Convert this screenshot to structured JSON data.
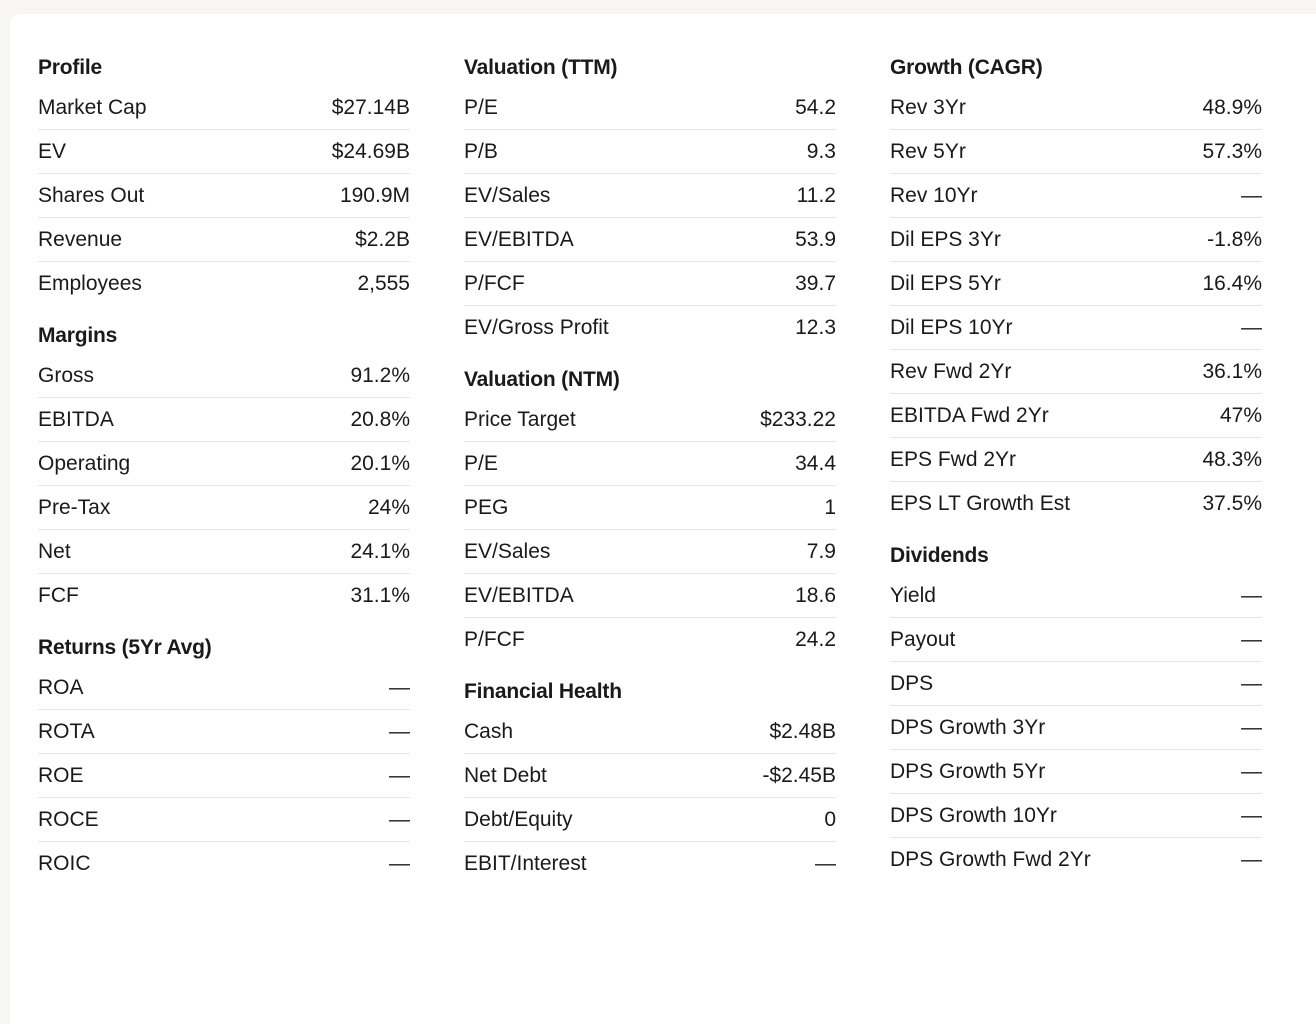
{
  "columns": [
    {
      "sections": [
        {
          "title": "Profile",
          "rows": [
            {
              "label": "Market Cap",
              "value": "$27.14B"
            },
            {
              "label": "EV",
              "value": "$24.69B"
            },
            {
              "label": "Shares Out",
              "value": "190.9M"
            },
            {
              "label": "Revenue",
              "value": "$2.2B"
            },
            {
              "label": "Employees",
              "value": "2,555"
            }
          ]
        },
        {
          "title": "Margins",
          "rows": [
            {
              "label": "Gross",
              "value": "91.2%"
            },
            {
              "label": "EBITDA",
              "value": "20.8%"
            },
            {
              "label": "Operating",
              "value": "20.1%"
            },
            {
              "label": "Pre-Tax",
              "value": "24%"
            },
            {
              "label": "Net",
              "value": "24.1%"
            },
            {
              "label": "FCF",
              "value": "31.1%"
            }
          ]
        },
        {
          "title": "Returns (5Yr Avg)",
          "rows": [
            {
              "label": "ROA",
              "value": "—"
            },
            {
              "label": "ROTA",
              "value": "—"
            },
            {
              "label": "ROE",
              "value": "—"
            },
            {
              "label": "ROCE",
              "value": "—"
            },
            {
              "label": "ROIC",
              "value": "—"
            }
          ]
        }
      ]
    },
    {
      "sections": [
        {
          "title": "Valuation (TTM)",
          "rows": [
            {
              "label": "P/E",
              "value": "54.2"
            },
            {
              "label": "P/B",
              "value": "9.3"
            },
            {
              "label": "EV/Sales",
              "value": "11.2"
            },
            {
              "label": "EV/EBITDA",
              "value": "53.9"
            },
            {
              "label": "P/FCF",
              "value": "39.7"
            },
            {
              "label": "EV/Gross Profit",
              "value": "12.3"
            }
          ]
        },
        {
          "title": "Valuation (NTM)",
          "rows": [
            {
              "label": "Price Target",
              "value": "$233.22"
            },
            {
              "label": "P/E",
              "value": "34.4"
            },
            {
              "label": "PEG",
              "value": "1"
            },
            {
              "label": "EV/Sales",
              "value": "7.9"
            },
            {
              "label": "EV/EBITDA",
              "value": "18.6"
            },
            {
              "label": "P/FCF",
              "value": "24.2"
            }
          ]
        },
        {
          "title": "Financial Health",
          "rows": [
            {
              "label": "Cash",
              "value": "$2.48B"
            },
            {
              "label": "Net Debt",
              "value": "-$2.45B"
            },
            {
              "label": "Debt/Equity",
              "value": "0"
            },
            {
              "label": "EBIT/Interest",
              "value": "—"
            }
          ]
        }
      ]
    },
    {
      "sections": [
        {
          "title": "Growth (CAGR)",
          "rows": [
            {
              "label": "Rev 3Yr",
              "value": "48.9%"
            },
            {
              "label": "Rev 5Yr",
              "value": "57.3%"
            },
            {
              "label": "Rev 10Yr",
              "value": "—"
            },
            {
              "label": "Dil EPS 3Yr",
              "value": "-1.8%"
            },
            {
              "label": "Dil EPS 5Yr",
              "value": "16.4%"
            },
            {
              "label": "Dil EPS 10Yr",
              "value": "—"
            },
            {
              "label": "Rev Fwd 2Yr",
              "value": "36.1%"
            },
            {
              "label": "EBITDA Fwd 2Yr",
              "value": "47%"
            },
            {
              "label": "EPS Fwd 2Yr",
              "value": "48.3%"
            },
            {
              "label": "EPS LT Growth Est",
              "value": "37.5%"
            }
          ]
        },
        {
          "title": "Dividends",
          "rows": [
            {
              "label": "Yield",
              "value": "—"
            },
            {
              "label": "Payout",
              "value": "—"
            },
            {
              "label": "DPS",
              "value": "—"
            },
            {
              "label": "DPS Growth 3Yr",
              "value": "—"
            },
            {
              "label": "DPS Growth 5Yr",
              "value": "—"
            },
            {
              "label": "DPS Growth 10Yr",
              "value": "—"
            },
            {
              "label": "DPS Growth Fwd 2Yr",
              "value": "—"
            }
          ]
        }
      ]
    }
  ]
}
